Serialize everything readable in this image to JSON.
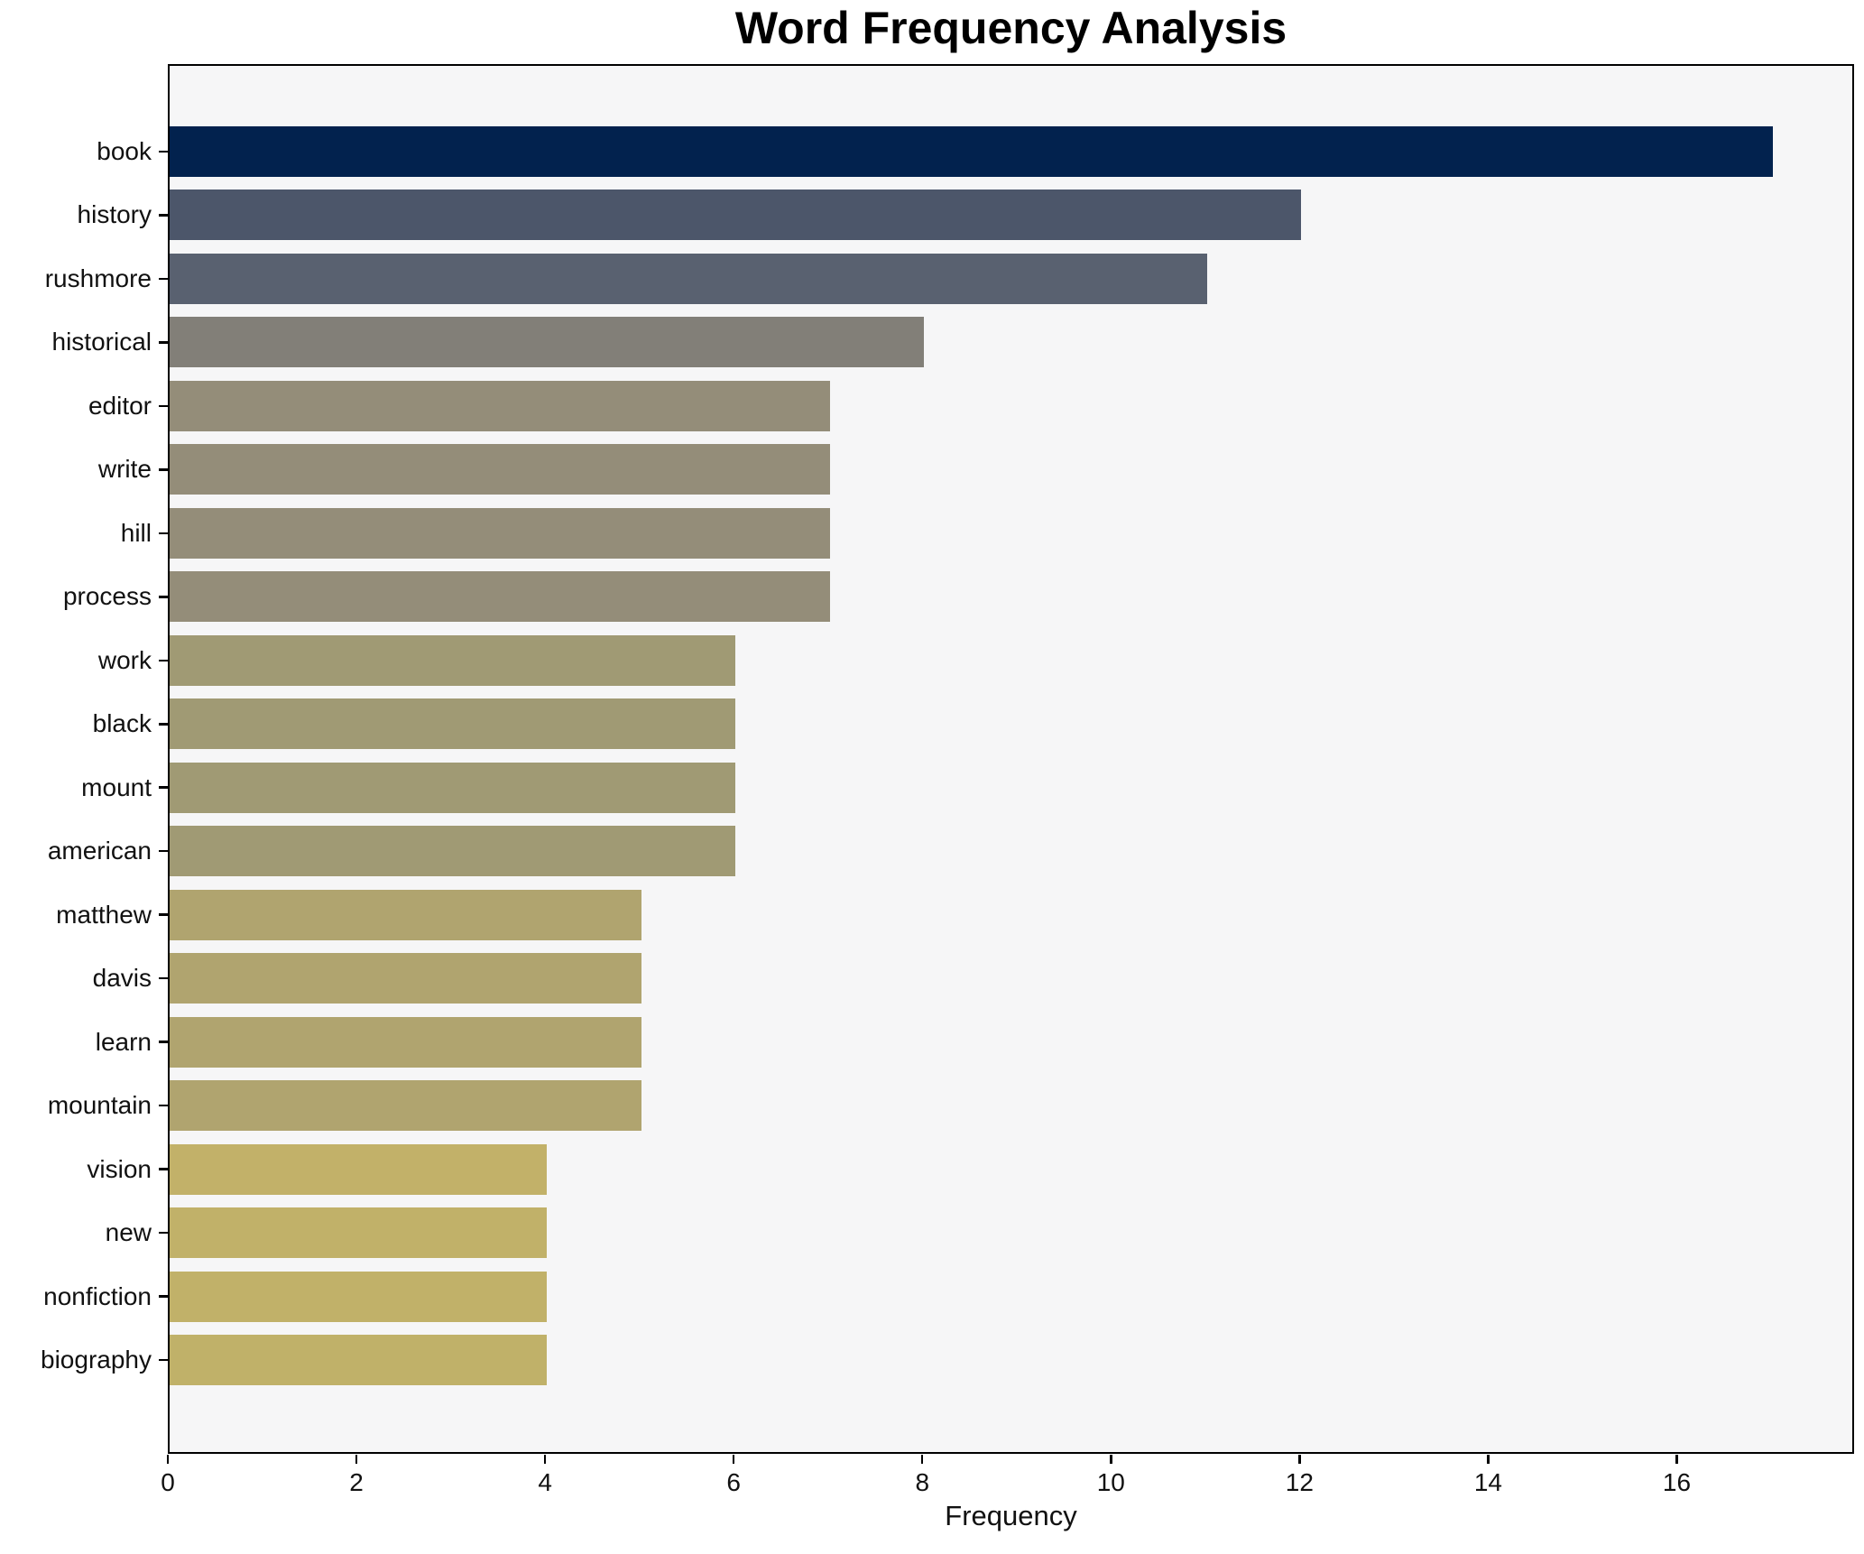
{
  "chart_data": {
    "type": "bar",
    "orientation": "horizontal",
    "title": "Word Frequency Analysis",
    "xlabel": "Frequency",
    "ylabel": "",
    "categories": [
      "book",
      "history",
      "rushmore",
      "historical",
      "editor",
      "write",
      "hill",
      "process",
      "work",
      "black",
      "mount",
      "american",
      "matthew",
      "davis",
      "learn",
      "mountain",
      "vision",
      "new",
      "nonfiction",
      "biography"
    ],
    "values": [
      17,
      12,
      11,
      8,
      7,
      7,
      7,
      7,
      6,
      6,
      6,
      6,
      5,
      5,
      5,
      5,
      4,
      4,
      4,
      4
    ],
    "bar_colors": [
      "#02224e",
      "#4c566a",
      "#596170",
      "#827f78",
      "#948d79",
      "#948d79",
      "#948d79",
      "#948d79",
      "#a09a74",
      "#a09a74",
      "#a09a74",
      "#a09a74",
      "#b0a46f",
      "#b0a46f",
      "#b0a46f",
      "#b0a46f",
      "#c2b169",
      "#c1b169",
      "#c1b169",
      "#c0b169"
    ],
    "xlim": [
      0,
      17.88
    ],
    "xticks": [
      0,
      2,
      4,
      6,
      8,
      10,
      12,
      14,
      16
    ],
    "grid": false,
    "legend": false,
    "plot_background": "#f6f6f7",
    "figure_background": "#ffffff",
    "spine_color": "#000000"
  }
}
